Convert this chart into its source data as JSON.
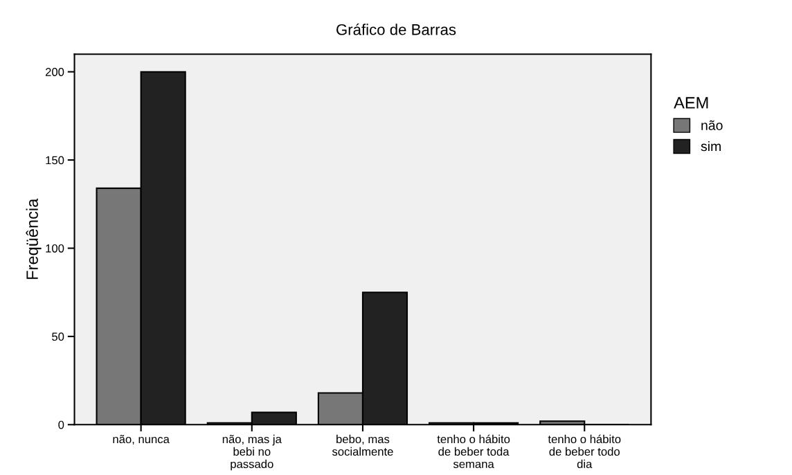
{
  "chart_data": {
    "type": "bar",
    "title": "Gráfico de Barras",
    "ylabel": "Freqüência",
    "legend_title": "AEM",
    "legend": "right",
    "categories": [
      "não, nunca",
      "não, mas ja\nbebi no\npassado",
      "bebo, mas\nsocialmente",
      "tenho o hábito\nde beber toda\nsemana",
      "tenho o hábito\nde beber todo\ndia"
    ],
    "series": [
      {
        "name": "não",
        "color": "#777777",
        "values": [
          134,
          1,
          18,
          1,
          2
        ]
      },
      {
        "name": "sim",
        "color": "#222222",
        "values": [
          200,
          7,
          75,
          1,
          0
        ]
      }
    ],
    "ylim": [
      0,
      210
    ],
    "yticks": [
      0,
      50,
      100,
      150,
      200
    ],
    "grid": false
  }
}
